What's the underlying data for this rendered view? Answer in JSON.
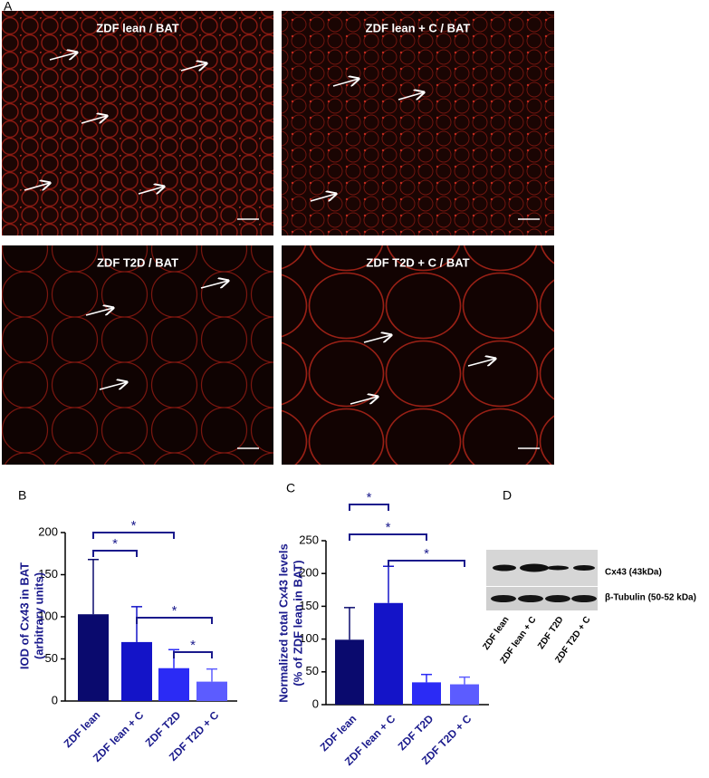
{
  "panels": [
    "A",
    "B",
    "C",
    "D"
  ],
  "micrographs": [
    "ZDF lean / BAT",
    "ZDF lean + C / BAT",
    "ZDF T2D / BAT",
    "ZDF T2D + C / BAT"
  ],
  "chart_data": [
    {
      "type": "bar",
      "y_label": [
        "IOD of  Cx43 in BAT",
        "(arbitrary units)"
      ],
      "categories": [
        "ZDF lean",
        "ZDF lean + C",
        "ZDF T2D",
        "ZDF T2D + C"
      ],
      "values": [
        103,
        70,
        39,
        23
      ],
      "errors": [
        65,
        42,
        22,
        15
      ],
      "colors": [
        "#0a0a6e",
        "#1414c8",
        "#2b2bf5",
        "#5c5cff"
      ],
      "ylim": [
        0,
        200
      ],
      "yticks": [
        0,
        50,
        100,
        150,
        200
      ],
      "significance": [
        {
          "groups": [
            0,
            1
          ],
          "label": "*"
        },
        {
          "groups": [
            0,
            2
          ],
          "label": "*"
        },
        {
          "groups": [
            1,
            3
          ],
          "label": "*"
        },
        {
          "groups": [
            2,
            3
          ],
          "label": "*"
        }
      ]
    },
    {
      "type": "bar",
      "y_label": [
        "Normalized total Cx43 levels",
        "(% of  ZDF lean in BAT)"
      ],
      "categories": [
        "ZDF lean",
        "ZDF lean + C",
        "ZDF T2D",
        "ZDF T2D + C"
      ],
      "values": [
        99,
        155,
        34,
        31
      ],
      "errors": [
        49,
        56,
        12,
        11
      ],
      "colors": [
        "#0a0a6e",
        "#1414c8",
        "#2b2bf5",
        "#5c5cff"
      ],
      "ylim": [
        0,
        250
      ],
      "yticks": [
        0,
        50,
        100,
        150,
        200,
        250
      ],
      "significance": [
        {
          "groups": [
            0,
            1
          ],
          "label": "*"
        },
        {
          "groups": [
            0,
            2
          ],
          "label": "*"
        },
        {
          "groups": [
            1,
            3
          ],
          "label": "*"
        }
      ]
    }
  ],
  "blot": {
    "bands": [
      "Cx43 (43kDa)",
      "β-Tubulin (50-52 kDa)"
    ],
    "lanes": [
      "ZDF lean",
      "ZDF lean + C",
      "ZDF T2D",
      "ZDF T2D + C"
    ]
  }
}
